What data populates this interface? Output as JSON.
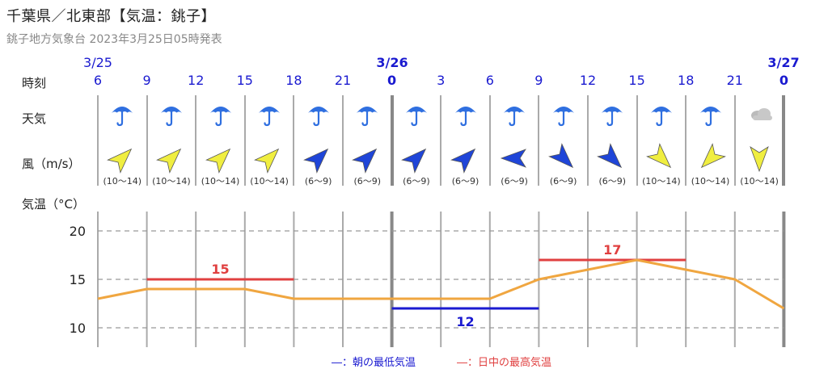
{
  "header": {
    "title": "千葉県／北東部【気温：銚子】",
    "subtitle": "銚子地方気象台 2023年3月25日05時発表"
  },
  "labels": {
    "hour": "時刻",
    "weather": "天気",
    "wind": "風（m/s）",
    "temp": "気温（°C）"
  },
  "dates": [
    {
      "text": "3/25",
      "major": false
    },
    {
      "text": "3/26",
      "major": true
    },
    {
      "text": "3/27",
      "major": true
    }
  ],
  "hours": [
    {
      "label": "6",
      "major": false
    },
    {
      "label": "9",
      "major": false
    },
    {
      "label": "12",
      "major": false
    },
    {
      "label": "15",
      "major": false
    },
    {
      "label": "18",
      "major": false
    },
    {
      "label": "21",
      "major": false
    },
    {
      "label": "0",
      "major": true
    },
    {
      "label": "3",
      "major": false
    },
    {
      "label": "6",
      "major": false
    },
    {
      "label": "9",
      "major": false
    },
    {
      "label": "12",
      "major": false
    },
    {
      "label": "15",
      "major": false
    },
    {
      "label": "18",
      "major": false
    },
    {
      "label": "21",
      "major": false
    },
    {
      "label": "0",
      "major": true
    }
  ],
  "weather": [
    "umbrella-icon",
    "umbrella-icon",
    "umbrella-icon",
    "umbrella-icon",
    "umbrella-icon",
    "umbrella-icon",
    "umbrella-icon",
    "umbrella-icon",
    "umbrella-icon",
    "umbrella-icon",
    "umbrella-icon",
    "umbrella-icon",
    "umbrella-icon",
    "cloud-icon"
  ],
  "wind": [
    {
      "range": "(10～14)",
      "dir": "SW",
      "color": "#f0ee40"
    },
    {
      "range": "(10～14)",
      "dir": "SW",
      "color": "#f0ee40"
    },
    {
      "range": "(10～14)",
      "dir": "SW",
      "color": "#f0ee40"
    },
    {
      "range": "(10～14)",
      "dir": "SW",
      "color": "#f0ee40"
    },
    {
      "range": "(6～9)",
      "dir": "SW",
      "color": "#1f45d8"
    },
    {
      "range": "(6～9)",
      "dir": "SW",
      "color": "#1f45d8"
    },
    {
      "range": "(6～9)",
      "dir": "SW",
      "color": "#1f45d8"
    },
    {
      "range": "(6～9)",
      "dir": "SW",
      "color": "#1f45d8"
    },
    {
      "range": "(6～9)",
      "dir": "E",
      "color": "#1f45d8"
    },
    {
      "range": "(6～9)",
      "dir": "NW",
      "color": "#1f45d8"
    },
    {
      "range": "(6～9)",
      "dir": "NW",
      "color": "#1f45d8"
    },
    {
      "range": "(10～14)",
      "dir": "NW",
      "color": "#f0ee40"
    },
    {
      "range": "(10～14)",
      "dir": "NE",
      "color": "#f0ee40"
    },
    {
      "range": "(10～14)",
      "dir": "N",
      "color": "#f0ee40"
    }
  ],
  "legend": {
    "min_label": "―：朝の最低気温",
    "max_label": "―：日中の最高気温"
  },
  "colors": {
    "blue": "#1a1ad0",
    "red": "#e04040",
    "line": "#f0a640"
  },
  "chart_data": {
    "type": "line",
    "x": [
      "6",
      "9",
      "12",
      "15",
      "18",
      "21",
      "0",
      "3",
      "6",
      "9",
      "12",
      "15",
      "18",
      "21",
      "0"
    ],
    "series": [
      {
        "values": [
          13,
          14,
          14,
          14,
          13,
          13,
          13,
          13,
          13,
          15,
          16,
          17,
          16,
          15,
          12
        ]
      }
    ],
    "ylim": [
      8,
      22
    ],
    "yticks": [
      10,
      15,
      20
    ],
    "grid": true,
    "annotations": [
      {
        "label": "15",
        "value": 15,
        "from": 1,
        "to": 4,
        "color": "#e04040"
      },
      {
        "label": "12",
        "value": 12,
        "from": 6,
        "to": 9,
        "color": "#1a1ad0"
      },
      {
        "label": "17",
        "value": 17,
        "from": 9,
        "to": 12,
        "color": "#e04040"
      }
    ]
  }
}
